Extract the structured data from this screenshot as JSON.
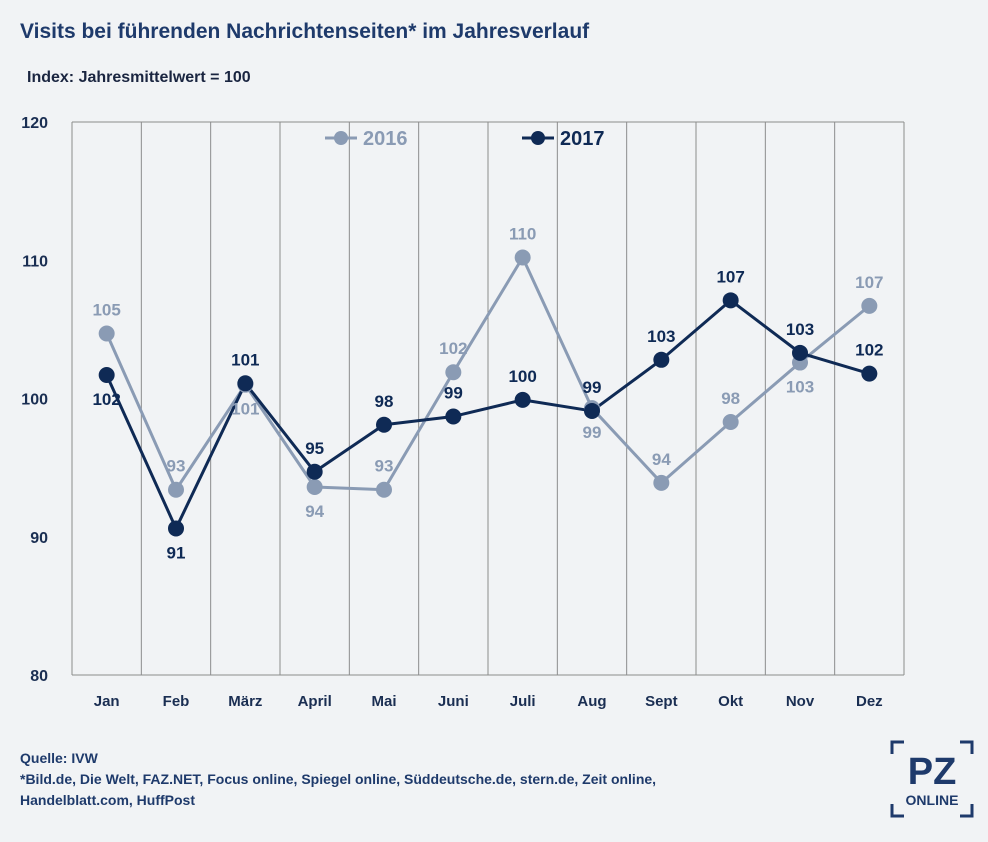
{
  "title": "Visits bei führenden Nachrichtenseiten* im Jahresverlauf",
  "subtitle": "Index: Jahresmittelwert = 100",
  "colors": {
    "s2016": "#8a9bb4",
    "s2017": "#0f2a55",
    "grid": "#8c8c8c",
    "axis_text": "#1a2e52"
  },
  "chart_data": {
    "type": "line",
    "categories": [
      "Jan",
      "Feb",
      "März",
      "April",
      "Mai",
      "Juni",
      "Juli",
      "Aug",
      "Sept",
      "Okt",
      "Nov",
      "Dez"
    ],
    "ylim": [
      80,
      120
    ],
    "yticks": [
      80,
      90,
      100,
      110,
      120
    ],
    "ytick_labels": [
      "80",
      "90",
      "100",
      "110",
      "120"
    ],
    "grid": "vertical and top",
    "legend_position": "top",
    "series": [
      {
        "name": "2016",
        "color": "#8a9bb4",
        "values": [
          104.7,
          93.4,
          101.0,
          93.6,
          93.4,
          101.9,
          110.2,
          99.3,
          93.9,
          98.3,
          102.6,
          106.7
        ],
        "labels": [
          "105",
          "93",
          "101",
          "94",
          "93",
          "102",
          "110",
          "99",
          "94",
          "98",
          "103",
          "107"
        ],
        "label_side": [
          "above",
          "above",
          "below",
          "below",
          "above",
          "above",
          "above",
          "below",
          "above",
          "above",
          "below",
          "above"
        ]
      },
      {
        "name": "2017",
        "color": "#0f2a55",
        "values": [
          101.7,
          90.6,
          101.1,
          94.7,
          98.1,
          98.7,
          99.9,
          99.1,
          102.8,
          107.1,
          103.3,
          101.8
        ],
        "labels": [
          "102",
          "91",
          "101",
          "95",
          "98",
          "99",
          "100",
          "99",
          "103",
          "107",
          "103",
          "102"
        ],
        "label_side": [
          "below",
          "below",
          "above",
          "above",
          "above",
          "above",
          "above",
          "above",
          "above",
          "above",
          "above",
          "above"
        ]
      }
    ]
  },
  "footer": {
    "source": "Quelle: IVW",
    "note_line1": "*Bild.de, Die Welt, FAZ.NET, Focus online, Spiegel online, Süddeutsche.de, stern.de, Zeit online,",
    "note_line2": "Handelblatt.com,  HuffPost"
  },
  "logo": {
    "main": "PZ",
    "sub": "ONLINE"
  }
}
